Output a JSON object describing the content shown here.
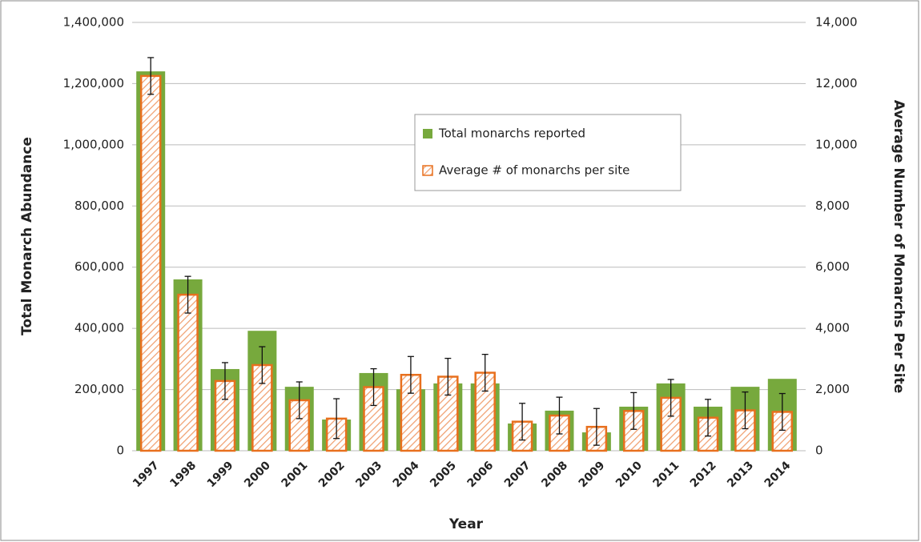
{
  "chart_data": {
    "type": "bar",
    "x_label": "Year",
    "y_label": "Total Monarch Abundance",
    "y2_label": "Average Number of Monarchs Per Site",
    "categories": [
      "1997",
      "1998",
      "1999",
      "2000",
      "2001",
      "2002",
      "2003",
      "2004",
      "2005",
      "2006",
      "2007",
      "2008",
      "2009",
      "2010",
      "2011",
      "2012",
      "2013",
      "2014"
    ],
    "series": [
      {
        "name": "Total monarchs reported",
        "color": "#77a93d",
        "values": [
          1240000,
          560000,
          267000,
          392000,
          209000,
          102000,
          254000,
          201000,
          220000,
          220000,
          89000,
          131000,
          60000,
          144000,
          220000,
          144000,
          209000,
          235000
        ]
      },
      {
        "name": "Average # of monarchs per site",
        "color": "#e8701e",
        "axis": "y2",
        "values": [
          12250,
          5100,
          2280,
          2800,
          1650,
          1050,
          2080,
          2480,
          2420,
          2550,
          950,
          1150,
          780,
          1300,
          1730,
          1080,
          1320,
          1270
        ],
        "errors": [
          600,
          600,
          600,
          600,
          600,
          650,
          600,
          600,
          600,
          600,
          600,
          600,
          600,
          600,
          600,
          600,
          600,
          600
        ]
      }
    ],
    "ylim": [
      0,
      1400000
    ],
    "yticks": [
      0,
      {
        "value": 200000,
        "label": "200,000"
      },
      {
        "value": 400000,
        "label": "400,000"
      },
      {
        "value": 600000,
        "label": "600,000"
      },
      {
        "value": 800000,
        "label": "800,000"
      },
      {
        "value": 1000000,
        "label": "1,000,000"
      },
      {
        "value": 1200000,
        "label": "1,200,000"
      },
      {
        "value": 1400000,
        "label": "1,400,000"
      }
    ],
    "y2lim": [
      0,
      14000
    ],
    "y2ticks": [
      0,
      {
        "value": 2000,
        "label": "2,000"
      },
      {
        "value": 4000,
        "label": "4,000"
      },
      {
        "value": 6000,
        "label": "6,000"
      },
      {
        "value": 8000,
        "label": "8,000"
      },
      {
        "value": 10000,
        "label": "10,000"
      },
      {
        "value": 12000,
        "label": "12,000"
      },
      {
        "value": 14000,
        "label": "14,000"
      }
    ],
    "grid": true
  }
}
